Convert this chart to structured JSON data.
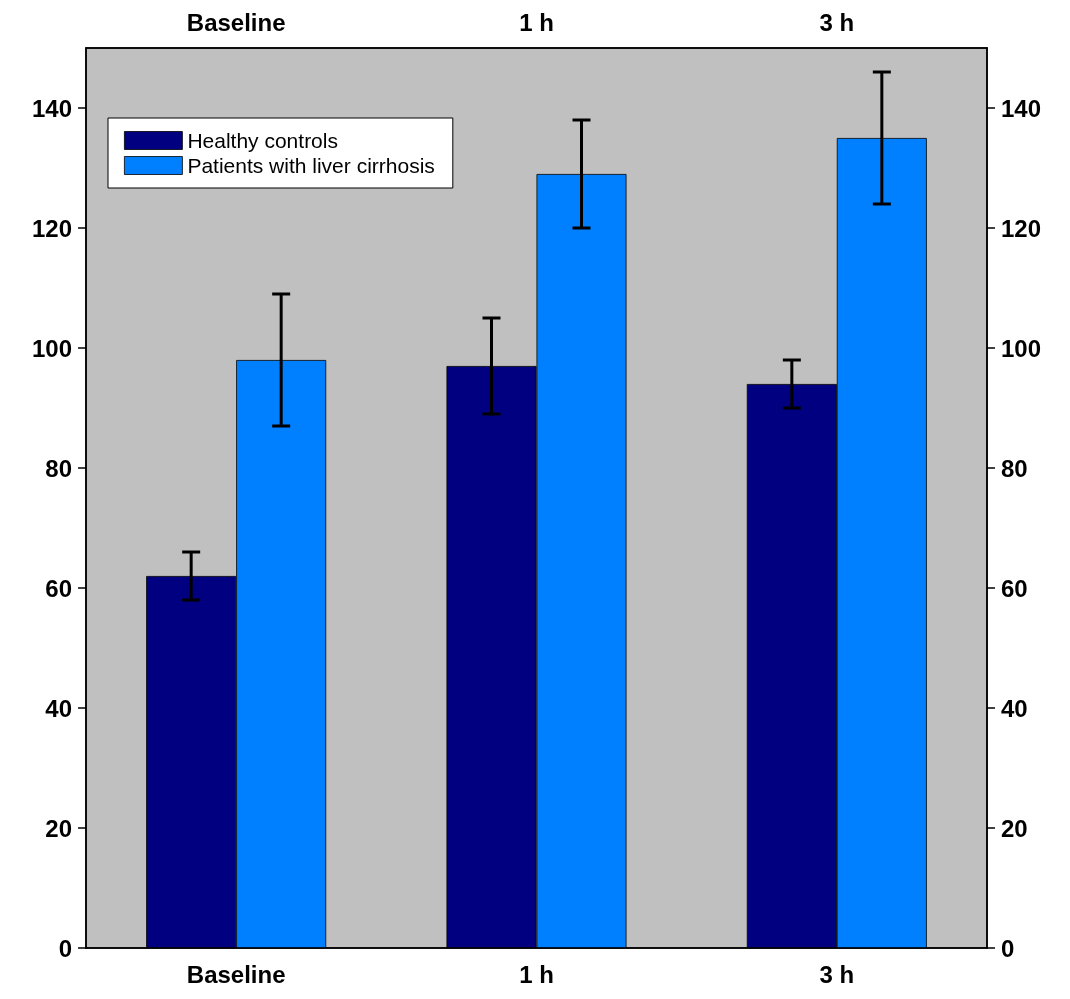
{
  "chart_data": {
    "type": "bar",
    "categories": [
      "Baseline",
      "1 h",
      "3 h"
    ],
    "series": [
      {
        "name": "Healthy controls",
        "color": "#000080",
        "values": [
          62,
          97,
          94
        ],
        "errors": [
          4,
          8,
          4
        ]
      },
      {
        "name": "Patients with liver cirrhosis",
        "color": "#0080ff",
        "values": [
          98,
          129,
          135
        ],
        "errors": [
          11,
          9,
          11
        ]
      }
    ],
    "ylim": [
      0,
      150
    ],
    "yticks": [
      0,
      20,
      40,
      60,
      80,
      100,
      120,
      140
    ],
    "y2lim": [
      0,
      150
    ],
    "y2ticks": [
      0,
      20,
      40,
      60,
      80,
      100,
      120,
      140
    ],
    "grid": false,
    "legend": "top left"
  }
}
